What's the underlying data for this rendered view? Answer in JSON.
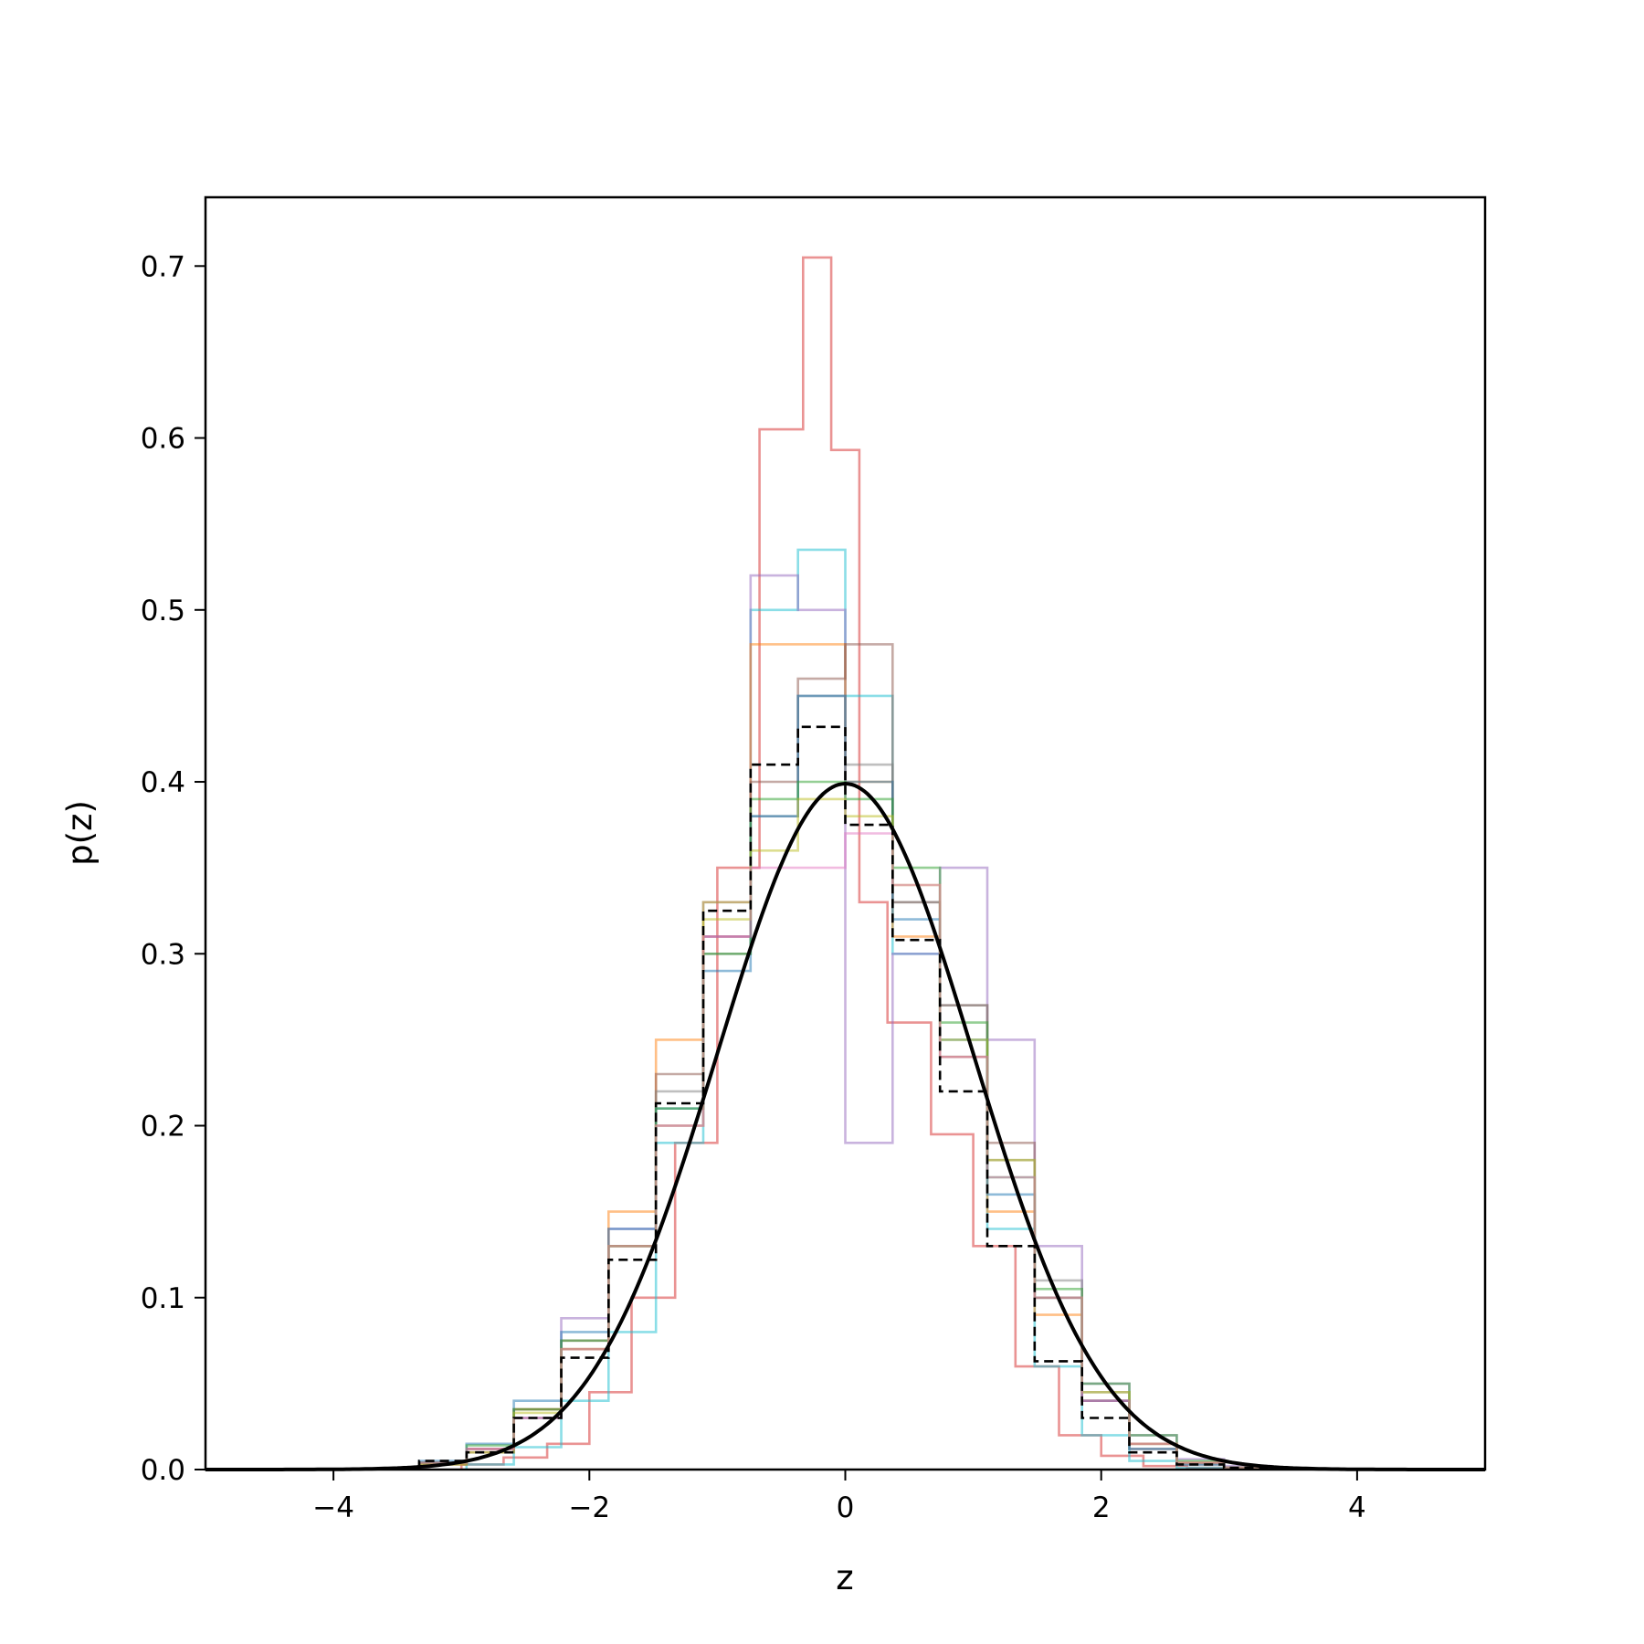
{
  "chart_data": {
    "type": "line",
    "title": "",
    "xlabel": "z",
    "ylabel": "p(z)",
    "xlim": [
      -5,
      5
    ],
    "ylim": [
      0,
      0.74
    ],
    "grid": false,
    "legend": "none",
    "x_ticks": [
      -4,
      -2,
      0,
      2,
      4
    ],
    "x_tick_labels": [
      "−4",
      "−2",
      "0",
      "2",
      "4"
    ],
    "y_ticks": [
      0.0,
      0.1,
      0.2,
      0.3,
      0.4,
      0.5,
      0.6,
      0.7
    ],
    "y_tick_labels": [
      "0.0",
      "0.1",
      "0.2",
      "0.3",
      "0.4",
      "0.5",
      "0.6",
      "0.7"
    ],
    "reference_curve": {
      "kind": "standard normal pdf",
      "mean": 0,
      "std": 1,
      "color": "#000000"
    },
    "histograms": [
      {
        "color": "#000000",
        "style": "dashed",
        "bin_edges": [
          -3.33,
          -2.96,
          -2.59,
          -2.22,
          -1.85,
          -1.48,
          -1.11,
          -0.74,
          -0.37,
          0.0,
          0.37,
          0.74,
          1.11,
          1.48,
          1.85,
          2.22,
          2.59,
          2.96,
          3.33
        ],
        "values": [
          0.005,
          0.01,
          0.03,
          0.065,
          0.122,
          0.213,
          0.325,
          0.41,
          0.432,
          0.375,
          0.308,
          0.22,
          0.13,
          0.063,
          0.03,
          0.01,
          0.003,
          0.001
        ]
      },
      {
        "color": "#d62728",
        "style": "solid",
        "bin_edges": [
          -3.0,
          -2.67,
          -2.33,
          -2.0,
          -1.67,
          -1.33,
          -1.0,
          -0.67,
          -0.33,
          -0.11,
          0.11,
          0.33,
          0.67,
          1.0,
          1.33,
          1.67,
          2.0,
          2.33,
          2.67,
          3.0
        ],
        "values": [
          0.003,
          0.007,
          0.015,
          0.045,
          0.1,
          0.19,
          0.35,
          0.605,
          0.705,
          0.593,
          0.33,
          0.26,
          0.195,
          0.13,
          0.06,
          0.02,
          0.008,
          0.002,
          0.001
        ]
      },
      {
        "color": "#17becf",
        "style": "solid",
        "bin_edges": [
          -2.96,
          -2.59,
          -2.22,
          -1.85,
          -1.48,
          -1.11,
          -0.74,
          -0.37,
          0.0,
          0.37,
          0.74,
          1.11,
          1.48,
          1.85,
          2.22,
          2.59,
          2.96
        ],
        "values": [
          0.003,
          0.013,
          0.04,
          0.08,
          0.19,
          0.33,
          0.5,
          0.535,
          0.45,
          0.3,
          0.24,
          0.14,
          0.06,
          0.02,
          0.005,
          0.001
        ]
      },
      {
        "color": "#9467bd",
        "style": "solid",
        "bin_edges": [
          -3.33,
          -2.96,
          -2.59,
          -2.22,
          -1.85,
          -1.48,
          -1.11,
          -0.74,
          -0.37,
          0.0,
          0.37,
          0.74,
          1.11,
          1.48,
          1.85,
          2.22,
          2.59,
          2.96,
          3.33
        ],
        "values": [
          0.004,
          0.012,
          0.03,
          0.088,
          0.14,
          0.2,
          0.31,
          0.52,
          0.5,
          0.19,
          0.3,
          0.35,
          0.25,
          0.13,
          0.05,
          0.02,
          0.006,
          0.002
        ]
      },
      {
        "color": "#ff7f0e",
        "style": "solid",
        "bin_edges": [
          -3.33,
          -2.96,
          -2.59,
          -2.22,
          -1.85,
          -1.48,
          -1.11,
          -0.74,
          -0.37,
          0.0,
          0.37,
          0.74,
          1.11,
          1.48,
          1.85,
          2.22,
          2.59,
          2.96,
          3.33
        ],
        "values": [
          0.004,
          0.012,
          0.035,
          0.07,
          0.15,
          0.25,
          0.33,
          0.48,
          0.48,
          0.4,
          0.31,
          0.24,
          0.15,
          0.09,
          0.04,
          0.015,
          0.004,
          0.001
        ]
      },
      {
        "color": "#8c564b",
        "style": "solid",
        "bin_edges": [
          -3.33,
          -2.96,
          -2.59,
          -2.22,
          -1.85,
          -1.48,
          -1.11,
          -0.74,
          -0.37,
          0.0,
          0.37,
          0.74,
          1.11,
          1.48,
          1.85,
          2.22,
          2.59,
          2.96,
          3.33
        ],
        "values": [
          0.003,
          0.01,
          0.035,
          0.075,
          0.13,
          0.23,
          0.31,
          0.4,
          0.46,
          0.48,
          0.33,
          0.27,
          0.19,
          0.1,
          0.04,
          0.012,
          0.003,
          0.001
        ]
      },
      {
        "color": "#7f7f7f",
        "style": "solid",
        "bin_edges": [
          -3.33,
          -2.96,
          -2.59,
          -2.22,
          -1.85,
          -1.48,
          -1.11,
          -0.74,
          -0.37,
          0.0,
          0.37,
          0.74,
          1.11,
          1.48,
          1.85,
          2.22,
          2.59,
          2.96,
          3.33
        ],
        "values": [
          0.004,
          0.012,
          0.03,
          0.07,
          0.13,
          0.22,
          0.3,
          0.38,
          0.45,
          0.41,
          0.33,
          0.27,
          0.18,
          0.11,
          0.045,
          0.015,
          0.004,
          0.001
        ]
      },
      {
        "color": "#1f77b4",
        "style": "solid",
        "bin_edges": [
          -3.33,
          -2.96,
          -2.59,
          -2.22,
          -1.85,
          -1.48,
          -1.11,
          -0.74,
          -0.37,
          0.0,
          0.37,
          0.74,
          1.11,
          1.48,
          1.85,
          2.22,
          2.59,
          2.96,
          3.33
        ],
        "values": [
          0.005,
          0.015,
          0.04,
          0.08,
          0.14,
          0.21,
          0.29,
          0.38,
          0.45,
          0.4,
          0.32,
          0.25,
          0.16,
          0.1,
          0.04,
          0.012,
          0.003,
          0.001
        ]
      },
      {
        "color": "#2ca02c",
        "style": "solid",
        "bin_edges": [
          -3.33,
          -2.96,
          -2.59,
          -2.22,
          -1.85,
          -1.48,
          -1.11,
          -0.74,
          -0.37,
          0.0,
          0.37,
          0.74,
          1.11,
          1.48,
          1.85,
          2.22,
          2.59,
          2.96,
          3.33
        ],
        "values": [
          0.004,
          0.014,
          0.035,
          0.075,
          0.13,
          0.21,
          0.3,
          0.39,
          0.4,
          0.39,
          0.35,
          0.26,
          0.17,
          0.105,
          0.05,
          0.02,
          0.005,
          0.001
        ]
      },
      {
        "color": "#bcbd22",
        "style": "solid",
        "bin_edges": [
          -3.33,
          -2.96,
          -2.59,
          -2.22,
          -1.85,
          -1.48,
          -1.11,
          -0.74,
          -0.37,
          0.0,
          0.37,
          0.74,
          1.11,
          1.48,
          1.85,
          2.22,
          2.59,
          2.96,
          3.33
        ],
        "values": [
          0.003,
          0.01,
          0.033,
          0.07,
          0.13,
          0.2,
          0.32,
          0.36,
          0.39,
          0.38,
          0.34,
          0.25,
          0.18,
          0.1,
          0.045,
          0.015,
          0.004,
          0.001
        ]
      },
      {
        "color": "#e377c2",
        "style": "solid",
        "bin_edges": [
          -3.33,
          -2.96,
          -2.59,
          -2.22,
          -1.85,
          -1.48,
          -1.11,
          -0.74,
          -0.37,
          0.0,
          0.37,
          0.74,
          1.11,
          1.48,
          1.85,
          2.22,
          2.59,
          2.96,
          3.33
        ],
        "values": [
          0.004,
          0.012,
          0.03,
          0.07,
          0.13,
          0.2,
          0.31,
          0.35,
          0.35,
          0.37,
          0.34,
          0.24,
          0.17,
          0.1,
          0.04,
          0.015,
          0.004,
          0.001
        ]
      }
    ]
  }
}
